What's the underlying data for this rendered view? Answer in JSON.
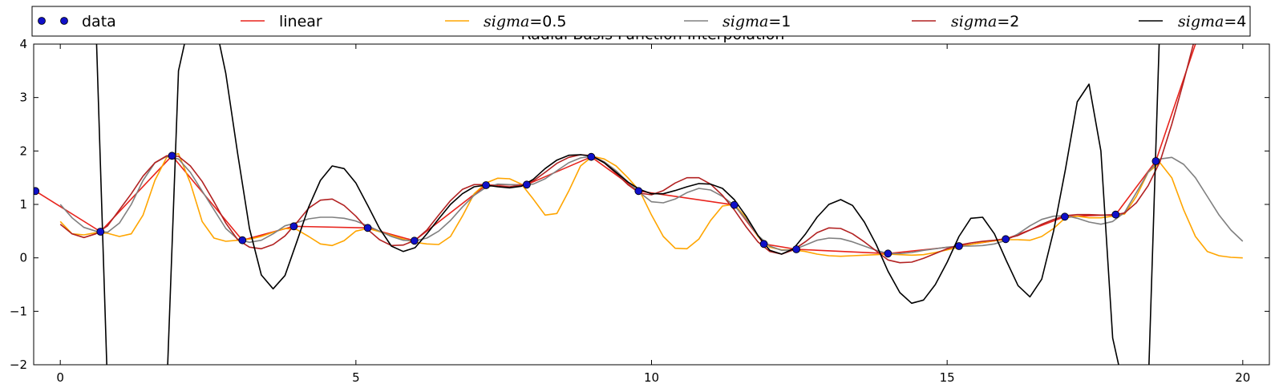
{
  "chart_data": {
    "type": "line",
    "title": "Radial Basis Function Interpolation",
    "xlabel": "",
    "ylabel": "",
    "xlim": [
      -0.45,
      20.45
    ],
    "ylim": [
      -2,
      4
    ],
    "xticks": [
      0,
      5,
      10,
      15,
      20
    ],
    "yticks": [
      -2,
      -1,
      0,
      1,
      2,
      3,
      4
    ],
    "grid": false,
    "legend_placement": "top, above plot, single row",
    "legend": [
      {
        "key": "data",
        "prefix": "data",
        "suffix": ""
      },
      {
        "key": "linear",
        "prefix": "linear",
        "suffix": ""
      },
      {
        "key": "s05",
        "prefix": "sigma",
        "suffix": "=0.5"
      },
      {
        "key": "s1",
        "prefix": "sigma",
        "suffix": "=1"
      },
      {
        "key": "s2",
        "prefix": "sigma",
        "suffix": "=2"
      },
      {
        "key": "s4",
        "prefix": "sigma",
        "suffix": "=4"
      }
    ],
    "data_points": {
      "name": "data",
      "color": "#1010c8",
      "x": [
        -0.42,
        0.68,
        1.89,
        3.08,
        3.95,
        5.2,
        5.99,
        7.2,
        7.89,
        8.98,
        9.78,
        11.4,
        11.9,
        12.45,
        14,
        15.2,
        15.99,
        16.99,
        17.85,
        18.53
      ],
      "y": [
        1.25,
        0.49,
        1.91,
        0.33,
        0.59,
        0.56,
        0.32,
        1.36,
        1.37,
        1.89,
        1.25,
        0.99,
        0.26,
        0.16,
        0.08,
        0.22,
        0.35,
        0.77,
        0.81,
        1.81
      ]
    },
    "series": [
      {
        "key": "linear",
        "name": "linear",
        "color": "#e8231c",
        "x": [
          -0.42,
          0.68,
          1.89,
          3.08,
          3.95,
          5.2,
          5.99,
          7.2,
          7.89,
          8.98,
          9.78,
          11.4,
          11.9,
          12.45,
          14,
          15.2,
          15.99,
          16.99,
          17.85,
          18.53,
          19.2,
          19.6
        ],
        "y": [
          1.25,
          0.49,
          1.91,
          0.33,
          0.59,
          0.56,
          0.32,
          1.36,
          1.37,
          1.89,
          1.25,
          0.99,
          0.26,
          0.16,
          0.08,
          0.22,
          0.35,
          0.77,
          0.81,
          1.81,
          4.0,
          4.5
        ]
      },
      {
        "key": "s05",
        "name": "sigma=0.5",
        "color": "#ffa500",
        "x": [
          0,
          0.2,
          0.4,
          0.6,
          0.8,
          1,
          1.2,
          1.4,
          1.6,
          1.8,
          2,
          2.2,
          2.4,
          2.6,
          2.8,
          3,
          3.2,
          3.4,
          3.6,
          3.8,
          4,
          4.2,
          4.4,
          4.6,
          4.8,
          5,
          5.2,
          5.4,
          5.6,
          5.8,
          6,
          6.2,
          6.4,
          6.6,
          6.8,
          7,
          7.2,
          7.4,
          7.6,
          7.8,
          8,
          8.2,
          8.4,
          8.6,
          8.8,
          9,
          9.2,
          9.4,
          9.6,
          9.8,
          10,
          10.2,
          10.4,
          10.6,
          10.8,
          11,
          11.2,
          11.4,
          11.6,
          11.8,
          12,
          12.2,
          12.4,
          12.6,
          12.8,
          13,
          13.2,
          13.4,
          13.6,
          13.8,
          14,
          14.2,
          14.4,
          14.6,
          14.8,
          15,
          15.2,
          15.4,
          15.6,
          15.8,
          16,
          16.2,
          16.4,
          16.6,
          16.8,
          17,
          17.2,
          17.4,
          17.6,
          17.8,
          18,
          18.2,
          18.4,
          18.6,
          18.8,
          19,
          19.2,
          19.4,
          19.6,
          19.8,
          20
        ],
        "y": [
          0.68,
          0.45,
          0.43,
          0.47,
          0.46,
          0.4,
          0.45,
          0.8,
          1.45,
          1.88,
          1.95,
          1.4,
          0.68,
          0.37,
          0.31,
          0.33,
          0.35,
          0.4,
          0.48,
          0.55,
          0.53,
          0.4,
          0.26,
          0.23,
          0.32,
          0.5,
          0.55,
          0.49,
          0.42,
          0.35,
          0.29,
          0.26,
          0.25,
          0.4,
          0.78,
          1.2,
          1.4,
          1.49,
          1.48,
          1.38,
          1.1,
          0.8,
          0.83,
          1.25,
          1.72,
          1.9,
          1.85,
          1.72,
          1.5,
          1.25,
          0.8,
          0.4,
          0.18,
          0.17,
          0.35,
          0.7,
          0.97,
          1.0,
          0.75,
          0.4,
          0.2,
          0.15,
          0.15,
          0.12,
          0.07,
          0.04,
          0.03,
          0.04,
          0.05,
          0.06,
          0.07,
          0.06,
          0.05,
          0.06,
          0.1,
          0.15,
          0.2,
          0.25,
          0.29,
          0.32,
          0.34,
          0.34,
          0.33,
          0.4,
          0.55,
          0.75,
          0.78,
          0.75,
          0.75,
          0.78,
          0.82,
          1.15,
          1.6,
          1.78,
          1.5,
          0.9,
          0.4,
          0.12,
          0.04,
          0.01,
          0.0
        ]
      },
      {
        "key": "s1",
        "name": "sigma=1",
        "color": "#808080",
        "x": [
          0,
          0.2,
          0.4,
          0.6,
          0.8,
          1,
          1.2,
          1.4,
          1.6,
          1.8,
          2,
          2.2,
          2.4,
          2.6,
          2.8,
          3,
          3.2,
          3.4,
          3.6,
          3.8,
          4,
          4.2,
          4.4,
          4.6,
          4.8,
          5,
          5.2,
          5.4,
          5.6,
          5.8,
          6,
          6.2,
          6.4,
          6.6,
          6.8,
          7,
          7.2,
          7.4,
          7.6,
          7.8,
          8,
          8.2,
          8.4,
          8.6,
          8.8,
          9,
          9.2,
          9.4,
          9.6,
          9.8,
          10,
          10.2,
          10.4,
          10.6,
          10.8,
          11,
          11.2,
          11.4,
          11.6,
          11.8,
          12,
          12.2,
          12.4,
          12.6,
          12.8,
          13,
          13.2,
          13.4,
          13.6,
          13.8,
          14,
          14.2,
          14.4,
          14.6,
          14.8,
          15,
          15.2,
          15.4,
          15.6,
          15.8,
          16,
          16.2,
          16.4,
          16.6,
          16.8,
          17,
          17.2,
          17.4,
          17.6,
          17.8,
          18,
          18.2,
          18.4,
          18.6,
          18.8,
          19,
          19.2,
          19.4,
          19.6,
          19.8,
          20
        ],
        "y": [
          1.0,
          0.75,
          0.57,
          0.5,
          0.48,
          0.65,
          1.0,
          1.45,
          1.78,
          1.9,
          1.85,
          1.6,
          1.25,
          0.9,
          0.55,
          0.35,
          0.29,
          0.33,
          0.45,
          0.6,
          0.66,
          0.73,
          0.76,
          0.76,
          0.74,
          0.69,
          0.6,
          0.5,
          0.4,
          0.33,
          0.32,
          0.37,
          0.5,
          0.7,
          0.95,
          1.17,
          1.32,
          1.38,
          1.37,
          1.36,
          1.38,
          1.48,
          1.63,
          1.78,
          1.87,
          1.9,
          1.8,
          1.63,
          1.42,
          1.22,
          1.05,
          1.03,
          1.1,
          1.22,
          1.3,
          1.27,
          1.15,
          0.98,
          0.72,
          0.42,
          0.22,
          0.14,
          0.15,
          0.24,
          0.33,
          0.37,
          0.36,
          0.3,
          0.22,
          0.14,
          0.08,
          0.08,
          0.1,
          0.14,
          0.17,
          0.2,
          0.22,
          0.22,
          0.23,
          0.26,
          0.33,
          0.45,
          0.6,
          0.72,
          0.78,
          0.79,
          0.74,
          0.67,
          0.63,
          0.68,
          0.85,
          1.22,
          1.6,
          1.85,
          1.88,
          1.75,
          1.5,
          1.15,
          0.8,
          0.52,
          0.31
        ]
      },
      {
        "key": "s2",
        "name": "sigma=2",
        "color": "#b22222",
        "x": [
          0,
          0.2,
          0.4,
          0.6,
          0.8,
          1,
          1.2,
          1.4,
          1.6,
          1.8,
          2,
          2.2,
          2.4,
          2.6,
          2.8,
          3,
          3.2,
          3.4,
          3.6,
          3.8,
          4,
          4.2,
          4.4,
          4.6,
          4.8,
          5,
          5.2,
          5.4,
          5.6,
          5.8,
          6,
          6.2,
          6.4,
          6.6,
          6.8,
          7,
          7.2,
          7.4,
          7.6,
          7.8,
          8,
          8.2,
          8.4,
          8.6,
          8.8,
          9,
          9.2,
          9.4,
          9.6,
          9.8,
          10,
          10.2,
          10.4,
          10.6,
          10.8,
          11,
          11.2,
          11.4,
          11.6,
          11.8,
          12,
          12.2,
          12.4,
          12.6,
          12.8,
          13,
          13.2,
          13.4,
          13.6,
          13.8,
          14,
          14.2,
          14.4,
          14.6,
          14.8,
          15,
          15.2,
          15.4,
          15.6,
          15.8,
          16,
          16.2,
          16.4,
          16.6,
          16.8,
          17,
          17.2,
          17.4,
          17.6,
          17.8,
          18,
          18.2,
          18.4,
          18.6,
          18.8,
          19,
          19.2,
          19.4
        ],
        "y": [
          0.63,
          0.45,
          0.38,
          0.45,
          0.6,
          0.9,
          1.2,
          1.53,
          1.78,
          1.91,
          1.9,
          1.72,
          1.43,
          1.05,
          0.65,
          0.34,
          0.2,
          0.17,
          0.25,
          0.41,
          0.66,
          0.93,
          1.08,
          1.1,
          0.98,
          0.78,
          0.53,
          0.34,
          0.23,
          0.24,
          0.33,
          0.52,
          0.8,
          1.07,
          1.28,
          1.37,
          1.37,
          1.34,
          1.33,
          1.36,
          1.44,
          1.6,
          1.77,
          1.88,
          1.93,
          1.91,
          1.78,
          1.58,
          1.37,
          1.21,
          1.18,
          1.26,
          1.4,
          1.5,
          1.5,
          1.38,
          1.17,
          0.9,
          0.58,
          0.3,
          0.12,
          0.07,
          0.15,
          0.3,
          0.47,
          0.56,
          0.55,
          0.45,
          0.3,
          0.13,
          -0.04,
          -0.09,
          -0.08,
          -0.01,
          0.08,
          0.17,
          0.24,
          0.28,
          0.31,
          0.33,
          0.36,
          0.42,
          0.52,
          0.63,
          0.72,
          0.79,
          0.81,
          0.81,
          0.8,
          0.8,
          0.84,
          1.03,
          1.35,
          1.8,
          2.5,
          3.3,
          4.15,
          4.8
        ]
      },
      {
        "key": "s4",
        "name": "sigma=4",
        "color": "#000000",
        "x": [
          0.6,
          0.8,
          1.8,
          2.0,
          2.2,
          2.6,
          2.8,
          3.0,
          3.2,
          3.4,
          3.6,
          3.8,
          4.0,
          4.2,
          4.4,
          4.6,
          4.8,
          5.0,
          5.2,
          5.4,
          5.6,
          5.8,
          6.0,
          6.2,
          6.4,
          6.6,
          6.8,
          7.0,
          7.2,
          7.4,
          7.6,
          7.8,
          8.0,
          8.2,
          8.4,
          8.6,
          8.8,
          9.0,
          9.2,
          9.4,
          9.6,
          9.8,
          10.0,
          10.2,
          10.4,
          10.6,
          10.8,
          11.0,
          11.2,
          11.4,
          11.6,
          11.8,
          12.0,
          12.2,
          12.4,
          12.6,
          12.8,
          13.0,
          13.2,
          13.4,
          13.6,
          13.8,
          14.0,
          14.2,
          14.4,
          14.6,
          14.8,
          15.0,
          15.2,
          15.4,
          15.6,
          15.8,
          16.0,
          16.2,
          16.4,
          16.6,
          16.8,
          17.0,
          17.2,
          17.4,
          17.6,
          17.8,
          18.0,
          18.4,
          18.6
        ],
        "y": [
          4.5,
          -2.5,
          -2.5,
          3.5,
          4.5,
          4.5,
          3.45,
          1.95,
          0.55,
          -0.32,
          -0.58,
          -0.33,
          0.3,
          0.95,
          1.45,
          1.72,
          1.67,
          1.4,
          0.98,
          0.55,
          0.22,
          0.12,
          0.19,
          0.45,
          0.73,
          1.0,
          1.2,
          1.33,
          1.36,
          1.33,
          1.31,
          1.34,
          1.47,
          1.67,
          1.83,
          1.92,
          1.93,
          1.9,
          1.78,
          1.6,
          1.42,
          1.28,
          1.2,
          1.2,
          1.26,
          1.33,
          1.39,
          1.38,
          1.3,
          1.09,
          0.78,
          0.42,
          0.14,
          0.07,
          0.17,
          0.44,
          0.76,
          1.0,
          1.09,
          0.98,
          0.67,
          0.25,
          -0.25,
          -0.65,
          -0.85,
          -0.79,
          -0.5,
          -0.08,
          0.4,
          0.74,
          0.76,
          0.45,
          -0.05,
          -0.52,
          -0.73,
          -0.4,
          0.5,
          1.65,
          2.92,
          3.25,
          2.0,
          -1.5,
          -2.5,
          -2.5,
          4.5
        ]
      }
    ]
  }
}
